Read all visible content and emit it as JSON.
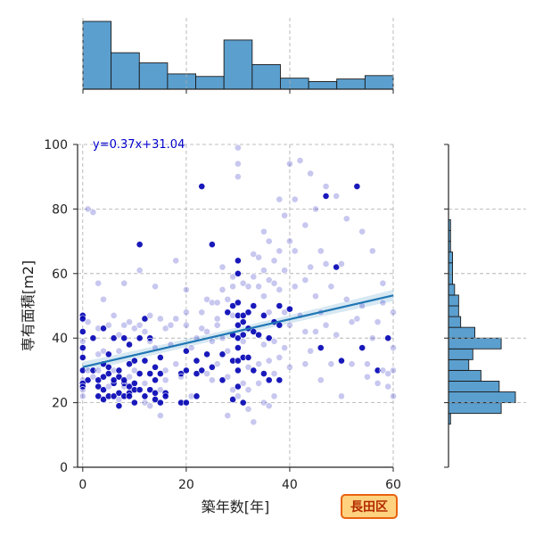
{
  "chart_data": {
    "type": "scatter",
    "title": "",
    "xlabel": "築年数[年]",
    "ylabel": "専有面積[m2]",
    "xlim": [
      -1,
      60
    ],
    "ylim": [
      0,
      100
    ],
    "x_ticks": [
      0,
      20,
      40,
      60
    ],
    "y_ticks": [
      0,
      20,
      40,
      60,
      80,
      100
    ],
    "grid": true,
    "grid_style": "dashed",
    "regression": {
      "equation_label": "y=0.37x+31.04",
      "slope": 0.37,
      "intercept": 31.04,
      "line_color": "#1f77b4",
      "band_color": "#a6cbe3",
      "label_color": "#0000cc"
    },
    "badge": {
      "label": "長田区",
      "fill": "#ffd27f",
      "stroke": "#e8620f",
      "text_color": "#b22a00"
    },
    "point_color": "#0000b4",
    "point_edge_color": "#ffffff",
    "hist_color": "#5b9fcf",
    "hist_edge_color": "#1a1a1a",
    "x_histogram": {
      "bin_edges": [
        0,
        5.45,
        10.91,
        16.36,
        21.82,
        27.27,
        32.73,
        38.18,
        43.64,
        49.09,
        54.55,
        60
      ],
      "counts": [
        80,
        43,
        31,
        18,
        15,
        58,
        29,
        13,
        9,
        12,
        16
      ]
    },
    "y_histogram": {
      "bin_edges": [
        0,
        3.33,
        6.67,
        10,
        13.33,
        16.67,
        20,
        23.33,
        26.67,
        30,
        33.33,
        36.67,
        40,
        43.33,
        46.67,
        50,
        53.33,
        56.67,
        60,
        63.33,
        66.67,
        70,
        73.33,
        76.67,
        80,
        83.33,
        86.67,
        90
      ],
      "counts": [
        0,
        0,
        0,
        0,
        1,
        26,
        33,
        25,
        16,
        10,
        12,
        26,
        13,
        6,
        5,
        5,
        3,
        2,
        2,
        2,
        1,
        1,
        1,
        0,
        0,
        0,
        0
      ]
    },
    "points": [
      [
        0,
        47,
        0.95
      ],
      [
        0,
        46,
        0.95
      ],
      [
        0,
        42,
        0.95
      ],
      [
        0,
        39,
        0.35
      ],
      [
        0,
        37,
        0.95
      ],
      [
        0,
        34,
        0.95
      ],
      [
        0,
        30,
        0.95
      ],
      [
        0,
        27,
        0.35
      ],
      [
        0,
        26,
        0.95
      ],
      [
        0,
        25,
        0.95
      ],
      [
        0,
        24,
        0.35
      ],
      [
        0,
        22,
        0.35
      ],
      [
        1,
        30,
        0.35
      ],
      [
        1,
        27,
        0.95
      ],
      [
        1,
        45,
        0.35
      ],
      [
        1,
        80,
        0.35
      ],
      [
        2,
        79,
        0.35
      ],
      [
        2,
        28,
        0.35
      ],
      [
        2,
        30,
        0.95
      ],
      [
        2,
        40,
        0.95
      ],
      [
        3,
        35,
        0.35
      ],
      [
        3,
        30,
        0.35
      ],
      [
        3,
        27,
        0.95
      ],
      [
        3,
        25,
        0.95
      ],
      [
        3,
        43,
        0.35
      ],
      [
        3,
        57,
        0.35
      ],
      [
        3,
        22,
        0.95
      ],
      [
        4,
        21,
        0.95
      ],
      [
        4,
        24,
        0.95
      ],
      [
        4,
        28,
        0.95
      ],
      [
        4,
        32,
        0.95
      ],
      [
        4,
        52,
        0.35
      ],
      [
        4,
        43,
        0.95
      ],
      [
        4,
        36,
        0.35
      ],
      [
        5,
        35,
        0.95
      ],
      [
        5,
        29,
        0.95
      ],
      [
        5,
        25,
        0.35
      ],
      [
        5,
        22,
        0.95
      ],
      [
        5,
        44,
        0.35
      ],
      [
        5,
        31,
        0.95
      ],
      [
        6,
        26,
        0.95
      ],
      [
        6,
        22,
        0.95
      ],
      [
        6,
        30,
        0.35
      ],
      [
        6,
        40,
        0.95
      ],
      [
        6,
        47,
        0.35
      ],
      [
        6,
        27,
        0.95
      ],
      [
        7,
        28,
        0.95
      ],
      [
        7,
        23,
        0.95
      ],
      [
        7,
        30,
        0.95
      ],
      [
        7,
        41,
        0.35
      ],
      [
        7,
        36,
        0.35
      ],
      [
        7,
        21,
        0.35
      ],
      [
        7,
        19,
        0.95
      ],
      [
        8,
        40,
        0.95
      ],
      [
        8,
        26,
        0.95
      ],
      [
        8,
        25,
        0.35
      ],
      [
        8,
        44,
        0.35
      ],
      [
        8,
        27,
        0.95
      ],
      [
        8,
        22,
        0.95
      ],
      [
        8,
        57,
        0.35
      ],
      [
        9,
        23,
        0.95
      ],
      [
        9,
        28,
        0.35
      ],
      [
        9,
        22,
        0.95
      ],
      [
        9,
        45,
        0.35
      ],
      [
        9,
        32,
        0.95
      ],
      [
        9,
        25,
        0.95
      ],
      [
        9,
        38,
        0.95
      ],
      [
        10,
        26,
        0.95
      ],
      [
        10,
        30,
        0.35
      ],
      [
        10,
        20,
        0.95
      ],
      [
        10,
        33,
        0.95
      ],
      [
        10,
        43,
        0.35
      ],
      [
        10,
        24,
        0.95
      ],
      [
        11,
        69,
        0.95
      ],
      [
        11,
        61,
        0.35
      ],
      [
        11,
        40,
        0.95
      ],
      [
        11,
        44,
        0.35
      ],
      [
        11,
        24,
        0.95
      ],
      [
        11,
        29,
        0.95
      ],
      [
        12,
        46,
        0.95
      ],
      [
        12,
        26,
        0.35
      ],
      [
        12,
        22,
        0.95
      ],
      [
        12,
        42,
        0.35
      ],
      [
        12,
        33,
        0.95
      ],
      [
        12,
        20,
        0.35
      ],
      [
        13,
        40,
        0.95
      ],
      [
        13,
        29,
        0.95
      ],
      [
        13,
        24,
        0.95
      ],
      [
        13,
        19,
        0.35
      ],
      [
        13,
        47,
        0.35
      ],
      [
        13,
        39,
        0.35
      ],
      [
        14,
        23,
        0.95
      ],
      [
        14,
        27,
        0.95
      ],
      [
        14,
        21,
        0.95
      ],
      [
        14,
        37,
        0.35
      ],
      [
        14,
        56,
        0.35
      ],
      [
        14,
        31,
        0.95
      ],
      [
        15,
        34,
        0.95
      ],
      [
        15,
        20,
        0.95
      ],
      [
        15,
        24,
        0.35
      ],
      [
        15,
        29,
        0.95
      ],
      [
        15,
        46,
        0.35
      ],
      [
        15,
        16,
        0.35
      ],
      [
        16,
        23,
        0.95
      ],
      [
        16,
        22,
        0.95
      ],
      [
        16,
        43,
        0.35
      ],
      [
        16,
        30,
        0.35
      ],
      [
        16,
        27,
        0.35
      ],
      [
        17,
        44,
        0.35
      ],
      [
        17,
        38,
        0.35
      ],
      [
        18,
        46,
        0.35
      ],
      [
        18,
        32,
        0.35
      ],
      [
        18,
        64,
        0.35
      ],
      [
        19,
        20,
        0.95
      ],
      [
        19,
        29,
        0.95
      ],
      [
        19,
        28,
        0.35
      ],
      [
        20,
        44,
        0.35
      ],
      [
        20,
        36,
        0.95
      ],
      [
        20,
        30,
        0.95
      ],
      [
        20,
        20,
        0.95
      ],
      [
        20,
        55,
        0.35
      ],
      [
        20,
        48,
        0.35
      ],
      [
        21,
        37,
        0.35
      ],
      [
        21,
        22,
        0.35
      ],
      [
        22,
        40,
        0.35
      ],
      [
        22,
        33,
        0.95
      ],
      [
        22,
        29,
        0.95
      ],
      [
        22,
        22,
        0.95
      ],
      [
        23,
        48,
        0.35
      ],
      [
        23,
        30,
        0.95
      ],
      [
        23,
        87,
        0.95
      ],
      [
        23,
        43,
        0.35
      ],
      [
        24,
        52,
        0.35
      ],
      [
        24,
        35,
        0.95
      ],
      [
        24,
        29,
        0.35
      ],
      [
        24,
        42,
        0.35
      ],
      [
        25,
        69,
        0.95
      ],
      [
        25,
        51,
        0.35
      ],
      [
        25,
        31,
        0.95
      ],
      [
        25,
        27,
        0.35
      ],
      [
        25,
        39,
        0.35
      ],
      [
        26,
        51,
        0.35
      ],
      [
        26,
        44,
        0.35
      ],
      [
        26,
        32,
        0.35
      ],
      [
        26,
        46,
        0.35
      ],
      [
        27,
        55,
        0.35
      ],
      [
        27,
        35,
        0.95
      ],
      [
        27,
        40,
        0.35
      ],
      [
        27,
        27,
        0.95
      ],
      [
        27,
        62,
        0.35
      ],
      [
        28,
        48,
        0.95
      ],
      [
        28,
        28,
        0.35
      ],
      [
        28,
        36,
        0.35
      ],
      [
        28,
        52,
        0.35
      ],
      [
        28,
        16,
        0.35
      ],
      [
        29,
        56,
        0.35
      ],
      [
        29,
        50,
        0.95
      ],
      [
        29,
        41,
        0.95
      ],
      [
        29,
        33,
        0.95
      ],
      [
        29,
        24,
        0.35
      ],
      [
        29,
        59,
        0.35
      ],
      [
        29,
        47,
        0.35
      ],
      [
        29,
        21,
        0.95
      ],
      [
        30,
        99,
        0.35
      ],
      [
        30,
        94,
        0.35
      ],
      [
        30,
        90,
        0.35
      ],
      [
        30,
        64,
        0.95
      ],
      [
        30,
        60,
        0.95
      ],
      [
        30,
        51,
        0.95
      ],
      [
        30,
        47,
        0.95
      ],
      [
        30,
        44,
        0.95
      ],
      [
        30,
        40,
        0.95
      ],
      [
        30,
        37,
        0.95
      ],
      [
        30,
        33,
        0.95
      ],
      [
        30,
        30,
        0.95
      ],
      [
        30,
        25,
        0.95
      ],
      [
        30,
        22,
        0.35
      ],
      [
        31,
        57,
        0.35
      ],
      [
        31,
        47,
        0.95
      ],
      [
        31,
        45,
        0.95
      ],
      [
        31,
        41,
        0.95
      ],
      [
        31,
        39,
        0.35
      ],
      [
        31,
        34,
        0.95
      ],
      [
        31,
        26,
        0.35
      ],
      [
        31,
        20,
        0.95
      ],
      [
        32,
        56,
        0.35
      ],
      [
        32,
        48,
        0.95
      ],
      [
        32,
        43,
        0.95
      ],
      [
        32,
        34,
        0.95
      ],
      [
        32,
        31,
        0.35
      ],
      [
        32,
        24,
        0.35
      ],
      [
        32,
        18,
        0.35
      ],
      [
        33,
        59,
        0.35
      ],
      [
        33,
        42,
        0.95
      ],
      [
        33,
        30,
        0.95
      ],
      [
        33,
        50,
        0.95
      ],
      [
        33,
        66,
        0.35
      ],
      [
        33,
        14,
        0.35
      ],
      [
        34,
        65,
        0.35
      ],
      [
        34,
        56,
        0.35
      ],
      [
        34,
        41,
        0.95
      ],
      [
        34,
        32,
        0.35
      ],
      [
        34,
        26,
        0.35
      ],
      [
        35,
        61,
        0.35
      ],
      [
        35,
        53,
        0.35
      ],
      [
        35,
        47,
        0.95
      ],
      [
        35,
        38,
        0.35
      ],
      [
        35,
        29,
        0.95
      ],
      [
        35,
        20,
        0.35
      ],
      [
        35,
        73,
        0.35
      ],
      [
        36,
        70,
        0.35
      ],
      [
        36,
        58,
        0.35
      ],
      [
        36,
        48,
        0.35
      ],
      [
        36,
        40,
        0.95
      ],
      [
        36,
        33,
        0.35
      ],
      [
        36,
        27,
        0.95
      ],
      [
        36,
        19,
        0.35
      ],
      [
        37,
        64,
        0.35
      ],
      [
        37,
        57,
        0.35
      ],
      [
        37,
        45,
        0.95
      ],
      [
        37,
        39,
        0.35
      ],
      [
        37,
        29,
        0.35
      ],
      [
        37,
        22,
        0.35
      ],
      [
        38,
        83,
        0.35
      ],
      [
        38,
        67,
        0.35
      ],
      [
        38,
        55,
        0.35
      ],
      [
        38,
        50,
        0.95
      ],
      [
        38,
        44,
        0.95
      ],
      [
        38,
        34,
        0.35
      ],
      [
        38,
        27,
        0.95
      ],
      [
        39,
        78,
        0.35
      ],
      [
        39,
        61,
        0.35
      ],
      [
        39,
        48,
        0.35
      ],
      [
        39,
        37,
        0.35
      ],
      [
        40,
        94,
        0.35
      ],
      [
        40,
        70,
        0.35
      ],
      [
        40,
        49,
        0.95
      ],
      [
        40,
        44,
        0.35
      ],
      [
        40,
        31,
        0.35
      ],
      [
        41,
        67,
        0.35
      ],
      [
        41,
        83,
        0.35
      ],
      [
        41,
        56,
        0.35
      ],
      [
        42,
        95,
        0.35
      ],
      [
        42,
        47,
        0.35
      ],
      [
        43,
        75,
        0.35
      ],
      [
        43,
        58,
        0.35
      ],
      [
        43,
        42,
        0.35
      ],
      [
        43,
        32,
        0.35
      ],
      [
        44,
        91,
        0.35
      ],
      [
        44,
        62,
        0.35
      ],
      [
        44,
        36,
        0.35
      ],
      [
        45,
        80,
        0.35
      ],
      [
        45,
        53,
        0.35
      ],
      [
        45,
        42,
        0.35
      ],
      [
        46,
        67,
        0.35
      ],
      [
        46,
        48,
        0.35
      ],
      [
        46,
        27,
        0.35
      ],
      [
        46,
        37,
        0.95
      ],
      [
        47,
        84,
        0.95
      ],
      [
        47,
        87,
        0.35
      ],
      [
        47,
        63,
        0.35
      ],
      [
        47,
        44,
        0.35
      ],
      [
        48,
        32,
        0.35
      ],
      [
        48,
        56,
        0.35
      ],
      [
        49,
        84,
        0.35
      ],
      [
        49,
        62,
        0.95
      ],
      [
        49,
        41,
        0.35
      ],
      [
        50,
        63,
        0.35
      ],
      [
        50,
        33,
        0.95
      ],
      [
        50,
        22,
        0.35
      ],
      [
        51,
        77,
        0.35
      ],
      [
        51,
        52,
        0.35
      ],
      [
        52,
        45,
        0.35
      ],
      [
        52,
        32,
        0.35
      ],
      [
        53,
        87,
        0.95
      ],
      [
        53,
        46,
        0.35
      ],
      [
        54,
        73,
        0.35
      ],
      [
        54,
        50,
        0.35
      ],
      [
        54,
        37,
        0.95
      ],
      [
        55,
        32,
        0.35
      ],
      [
        55,
        28,
        0.35
      ],
      [
        56,
        67,
        0.35
      ],
      [
        56,
        40,
        0.35
      ],
      [
        57,
        30,
        0.95
      ],
      [
        57,
        26,
        0.35
      ],
      [
        57,
        45,
        0.35
      ],
      [
        58,
        51,
        0.35
      ],
      [
        58,
        30,
        0.35
      ],
      [
        58,
        57,
        0.35
      ],
      [
        59,
        40,
        0.95
      ],
      [
        59,
        29,
        0.35
      ],
      [
        59,
        25,
        0.35
      ],
      [
        60,
        48,
        0.35
      ],
      [
        60,
        37,
        0.35
      ],
      [
        60,
        22,
        0.35
      ],
      [
        60,
        30,
        0.35
      ]
    ]
  }
}
